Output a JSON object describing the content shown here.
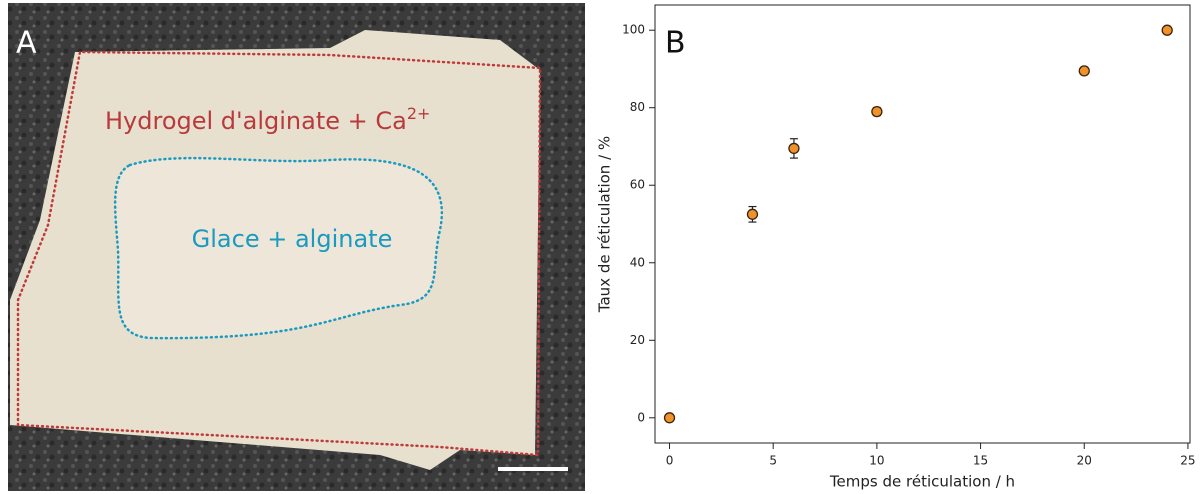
{
  "panel_a": {
    "label": "A",
    "outer_label": {
      "text": "Hydrogel d'alginate + Ca",
      "superscript": "2+"
    },
    "inner_label": "Glace + alginate"
  },
  "chart_data": {
    "type": "scatter",
    "panel_label": "B",
    "x_label": "Temps de réticulation / h",
    "y_label": "Taux de réticulation / %",
    "x": [
      0,
      4,
      6,
      10,
      20,
      24
    ],
    "values": [
      0,
      52.5,
      69.5,
      79,
      89.5,
      100
    ],
    "errors": [
      0,
      2,
      2.5,
      1,
      0,
      0
    ],
    "color": "#f0922a",
    "xlim": [
      -0.7,
      25.1
    ],
    "ylim": [
      -6.5,
      106.5
    ],
    "xticks": [
      0,
      5,
      10,
      15,
      20,
      25
    ],
    "yticks": [
      0,
      20,
      40,
      60,
      80,
      100
    ],
    "grid": false
  }
}
